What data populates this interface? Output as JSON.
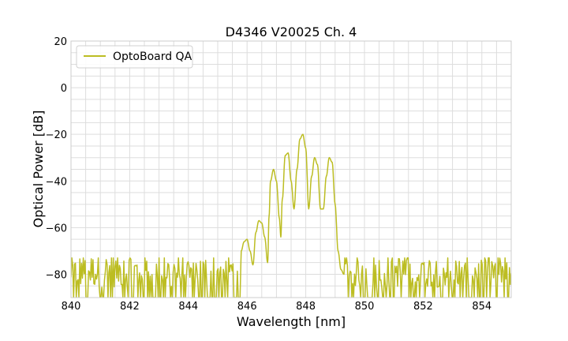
{
  "chart_data": {
    "type": "line",
    "title": "D4346 V20025 Ch. 4",
    "xlabel": "Wavelength [nm]",
    "ylabel": "Optical Power [dB]",
    "xlim": [
      840,
      855
    ],
    "ylim": [
      -90,
      20
    ],
    "xticks": [
      840,
      842,
      844,
      846,
      848,
      850,
      852,
      854
    ],
    "yticks": [
      -80,
      -60,
      -40,
      -20,
      0,
      20
    ],
    "xtick_labels": [
      "840",
      "842",
      "844",
      "846",
      "848",
      "850",
      "852",
      "854"
    ],
    "ytick_labels": [
      "−80",
      "−60",
      "−40",
      "−20",
      "0",
      "20"
    ],
    "grid": true,
    "legend_position": "top-left",
    "series": [
      {
        "name": "OptoBoard QA",
        "color": "#bcbd22",
        "noise_floor": {
          "min": -90,
          "max": -73,
          "typical": -80
        },
        "x": [
          845.8,
          845.9,
          846.0,
          846.1,
          846.2,
          846.3,
          846.4,
          846.5,
          846.6,
          846.7,
          846.75,
          846.8,
          846.9,
          847.0,
          847.1,
          847.15,
          847.2,
          847.3,
          847.4,
          847.5,
          847.6,
          847.7,
          847.8,
          847.9,
          848.0,
          848.1,
          848.2,
          848.3,
          848.4,
          848.5,
          848.6,
          848.7,
          848.8,
          848.9,
          849.0,
          849.1,
          849.2,
          849.3
        ],
        "y": [
          -70,
          -66,
          -65,
          -70,
          -76,
          -62,
          -57,
          -58,
          -64,
          -75,
          -55,
          -40,
          -35,
          -40,
          -56,
          -64,
          -48,
          -29,
          -28,
          -40,
          -52,
          -35,
          -22,
          -20,
          -26,
          -52,
          -38,
          -30,
          -33,
          -52,
          -52,
          -38,
          -30,
          -32,
          -50,
          -70,
          -78,
          -80
        ]
      }
    ]
  }
}
